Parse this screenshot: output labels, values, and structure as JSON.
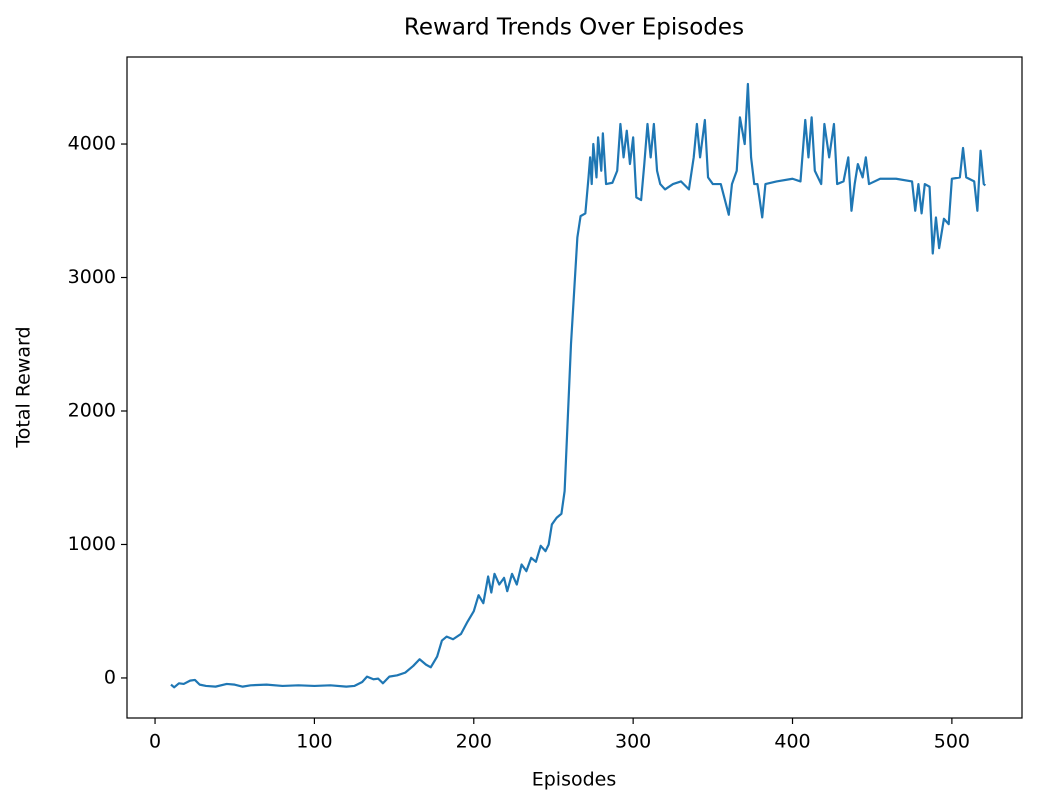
{
  "chart_data": {
    "type": "line",
    "title": "Reward Trends Over Episodes",
    "x_label": "Episodes",
    "y_label": "Total Reward",
    "color": "#1f77b4",
    "x": [
      10,
      12,
      15,
      18,
      22,
      25,
      28,
      32,
      38,
      45,
      50,
      55,
      60,
      70,
      80,
      90,
      100,
      110,
      120,
      125,
      130,
      133,
      137,
      140,
      143,
      147,
      152,
      157,
      162,
      166,
      170,
      173,
      177,
      180,
      183,
      187,
      192,
      196,
      200,
      203,
      206,
      209,
      211,
      213,
      216,
      219,
      221,
      224,
      227,
      230,
      233,
      236,
      239,
      242,
      245,
      247,
      249,
      252,
      255,
      257,
      259,
      261,
      263,
      265,
      267,
      270,
      272,
      273,
      274,
      275,
      277,
      278,
      280,
      281,
      283,
      287,
      290,
      292,
      294,
      296,
      298,
      300,
      302,
      305,
      307,
      309,
      311,
      313,
      315,
      317,
      320,
      325,
      330,
      335,
      338,
      340,
      342,
      345,
      347,
      350,
      355,
      360,
      362,
      365,
      367,
      370,
      372,
      374,
      376,
      378,
      381,
      383,
      390,
      400,
      405,
      408,
      410,
      412,
      414,
      418,
      420,
      423,
      426,
      428,
      432,
      435,
      437,
      439,
      441,
      444,
      446,
      448,
      455,
      465,
      475,
      477,
      479,
      481,
      483,
      486,
      488,
      490,
      492,
      495,
      498,
      500,
      505,
      507,
      509,
      514,
      516,
      518,
      520,
      521
    ],
    "values": [
      -50,
      -70,
      -40,
      -45,
      -20,
      -15,
      -50,
      -60,
      -65,
      -45,
      -50,
      -65,
      -55,
      -50,
      -60,
      -55,
      -60,
      -55,
      -65,
      -60,
      -30,
      10,
      -10,
      -5,
      -40,
      10,
      20,
      40,
      90,
      140,
      100,
      80,
      160,
      280,
      310,
      290,
      330,
      420,
      500,
      620,
      560,
      760,
      640,
      780,
      700,
      750,
      650,
      780,
      700,
      850,
      800,
      900,
      870,
      990,
      950,
      1000,
      1150,
      1200,
      1230,
      1400,
      1950,
      2500,
      2900,
      3300,
      3460,
      3480,
      3750,
      3900,
      3700,
      4000,
      3750,
      4050,
      3800,
      4080,
      3700,
      3710,
      3800,
      4150,
      3900,
      4100,
      3850,
      4050,
      3600,
      3580,
      3850,
      4150,
      3900,
      4150,
      3800,
      3700,
      3660,
      3700,
      3720,
      3660,
      3900,
      4150,
      3900,
      4180,
      3750,
      3700,
      3700,
      3470,
      3700,
      3800,
      4200,
      4000,
      4450,
      3900,
      3700,
      3700,
      3450,
      3700,
      3720,
      3740,
      3720,
      4180,
      3900,
      4200,
      3800,
      3700,
      4150,
      3900,
      4150,
      3700,
      3720,
      3900,
      3500,
      3700,
      3850,
      3750,
      3900,
      3700,
      3740,
      3740,
      3720,
      3500,
      3700,
      3480,
      3700,
      3680,
      3180,
      3450,
      3220,
      3440,
      3400,
      3740,
      3750,
      3970,
      3750,
      3720,
      3500,
      3950,
      3700,
      3690
    ],
    "xlim": [
      -17.6,
      544
    ],
    "ylim": [
      -300,
      4652
    ],
    "xticks": [
      0,
      100,
      200,
      300,
      400,
      500
    ],
    "yticks": [
      0,
      1000,
      2000,
      3000,
      4000
    ]
  }
}
